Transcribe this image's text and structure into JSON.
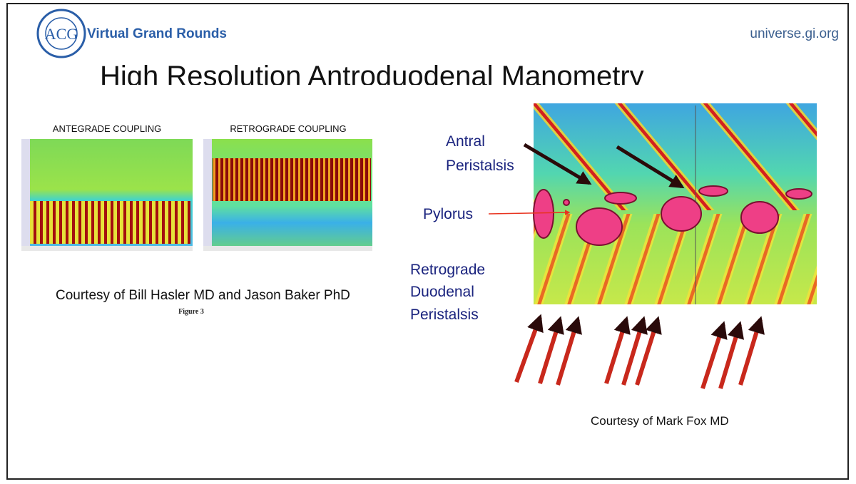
{
  "header": {
    "logo": "ACG",
    "brand": "Virtual Grand Rounds",
    "site": "universe.gi.org"
  },
  "title": "High Resolution Antroduodenal Manometry",
  "left": {
    "panel_labels": [
      "ANTEGRADE COUPLING",
      "RETROGRADE COUPLING"
    ],
    "credit": "Courtesy of Bill Hasler MD and Jason Baker PhD",
    "figure_label": "Figure 3"
  },
  "right": {
    "antral_label": [
      "Antral",
      "Peristalsis"
    ],
    "pylorus_label": "Pylorus",
    "retrograde_label": [
      "Retrograde",
      "Duodenal",
      "Peristalsis"
    ],
    "credit": "Courtesy of Mark Fox MD"
  }
}
